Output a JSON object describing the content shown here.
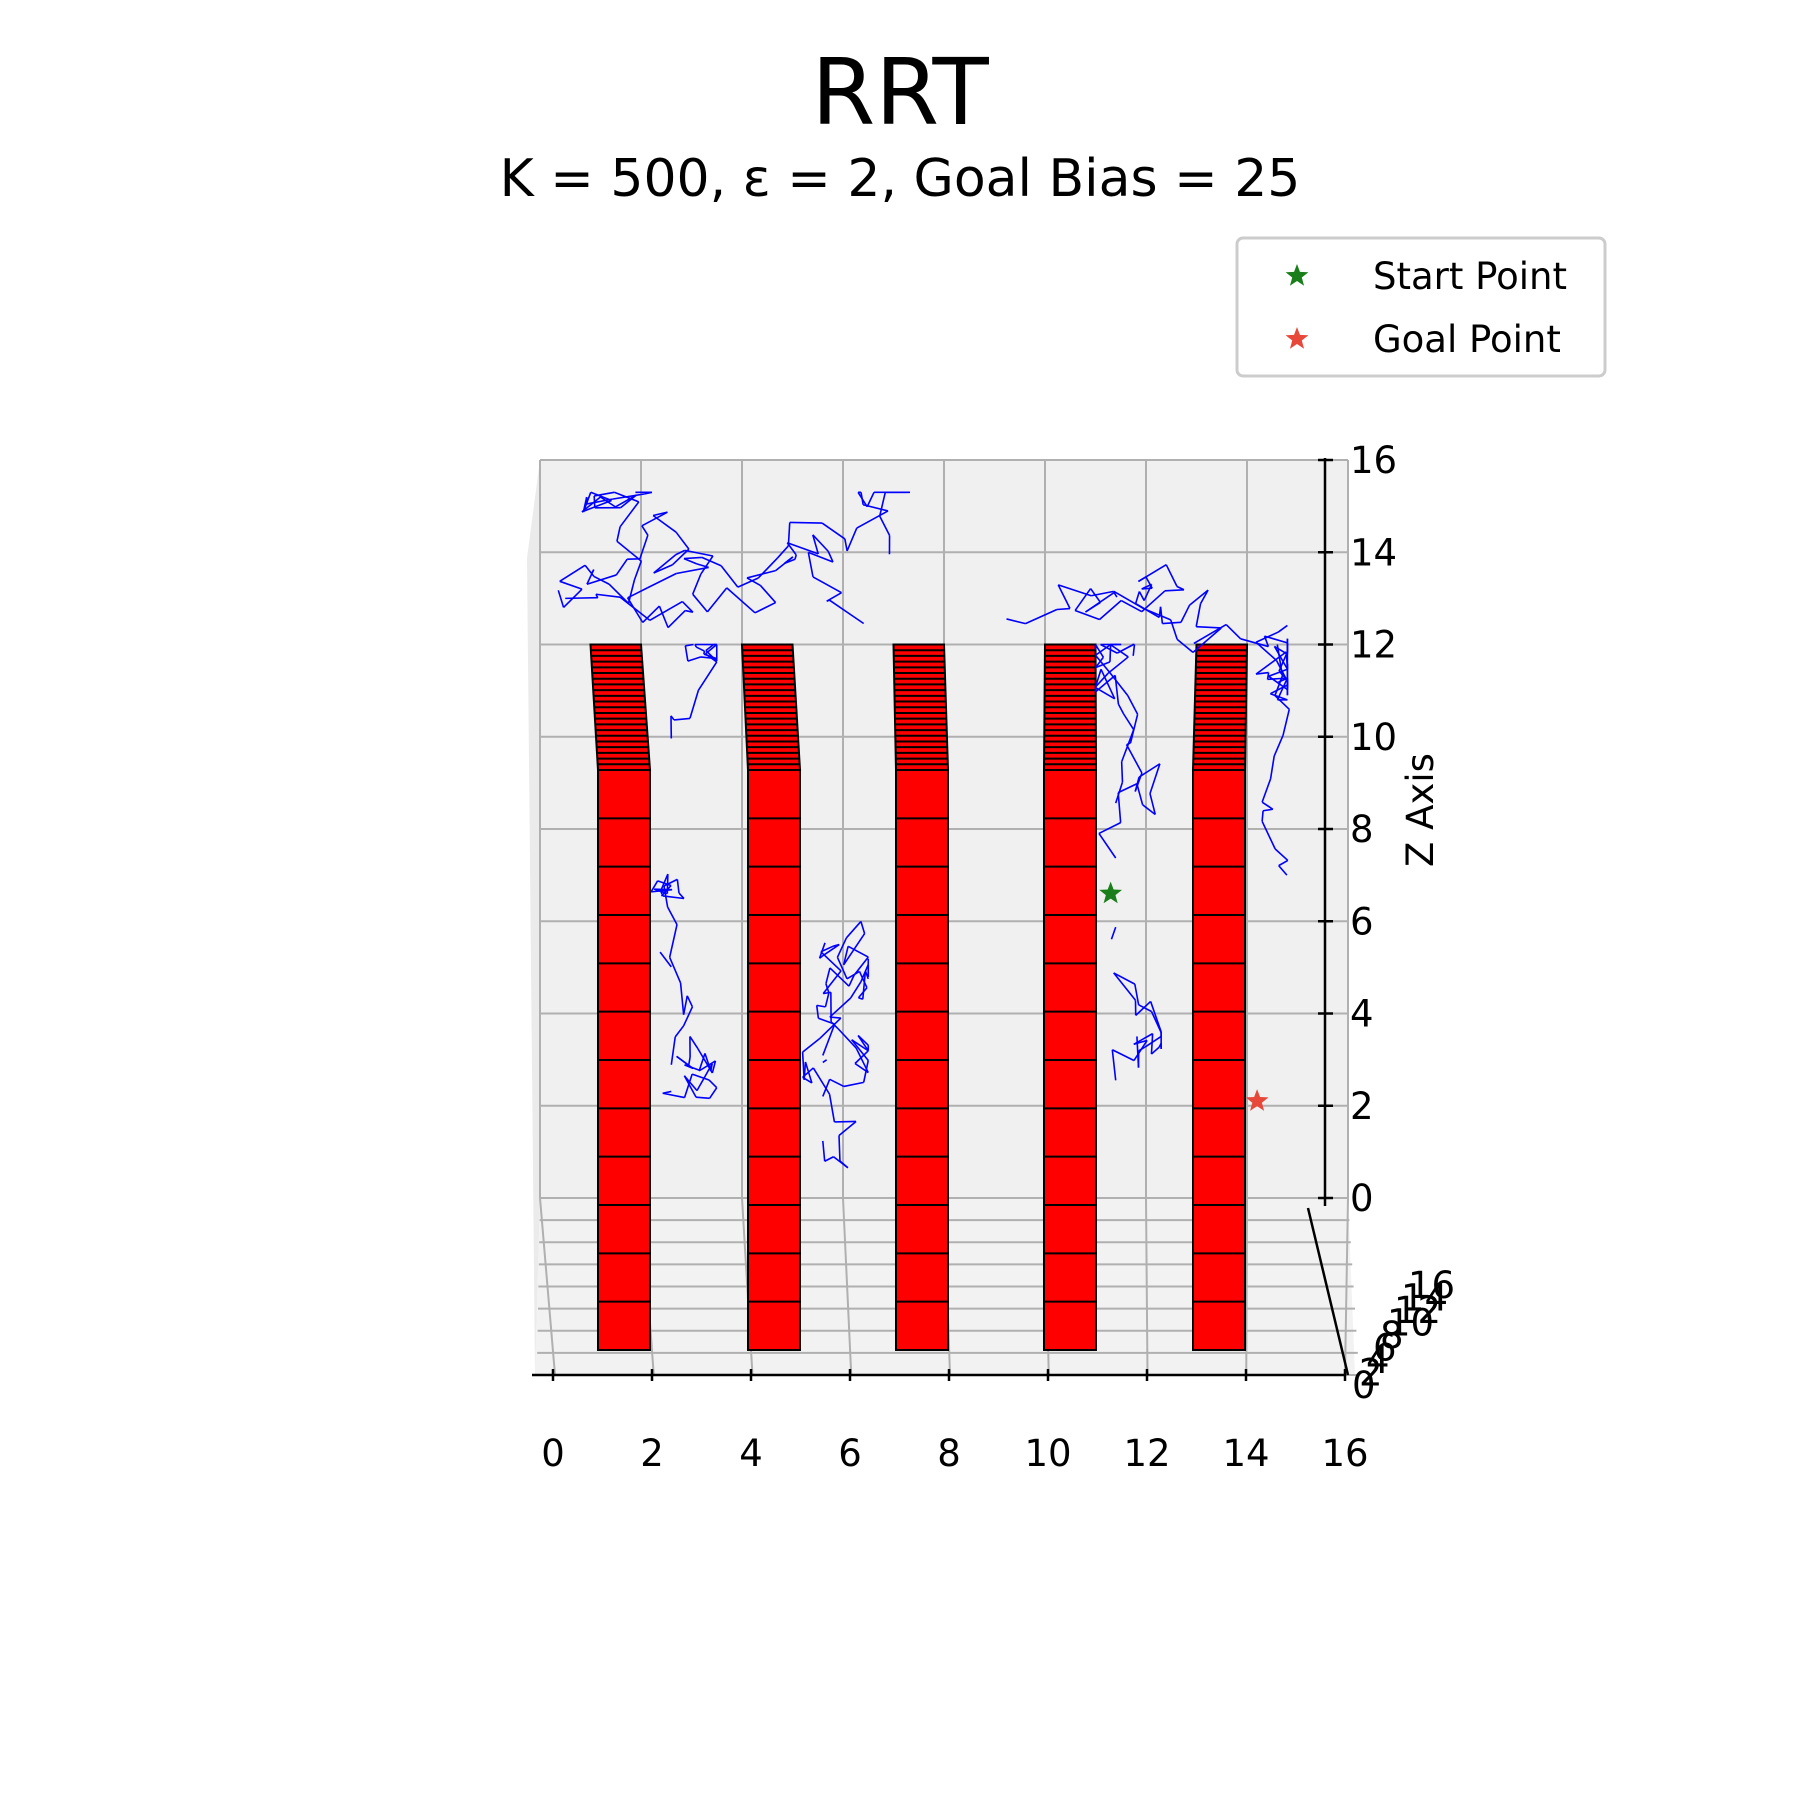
{
  "chart_data": {
    "type": "scatter",
    "title": "RRT",
    "subtitle": "K = 500, ε = 2, Goal Bias = 25",
    "projection": "3d",
    "zlabel": "Z Axis",
    "xlabel": "",
    "ylabel": "",
    "x_ticks": [
      "0",
      "2",
      "4",
      "6",
      "8",
      "10",
      "12",
      "14",
      "16"
    ],
    "y_ticks": [
      "0",
      "2",
      "4",
      "6",
      "8",
      "10",
      "12",
      "14",
      "16"
    ],
    "z_ticks": [
      "0",
      "2",
      "4",
      "6",
      "8",
      "10",
      "12",
      "14",
      "16"
    ],
    "xlim": [
      0,
      16
    ],
    "ylim": [
      0,
      16
    ],
    "zlim": [
      0,
      16
    ],
    "grid": true,
    "legend_position": "top-right",
    "series": [
      {
        "name": "Start Point",
        "marker": "star",
        "color": "#1a7f1a",
        "x": [
          11.3
        ],
        "z": [
          6.6
        ]
      },
      {
        "name": "Goal Point",
        "marker": "star",
        "color": "#e8483a",
        "x": [
          14.2
        ],
        "z": [
          2.1
        ]
      }
    ],
    "obstacles": {
      "face_color": "#ff0000",
      "side_color": "#000000",
      "x_ranges": [
        [
          1,
          2
        ],
        [
          4,
          5
        ],
        [
          7,
          8
        ],
        [
          10,
          11
        ],
        [
          13,
          14
        ]
      ],
      "z_range": [
        0,
        12
      ]
    },
    "tree_color": "#0000ff"
  }
}
